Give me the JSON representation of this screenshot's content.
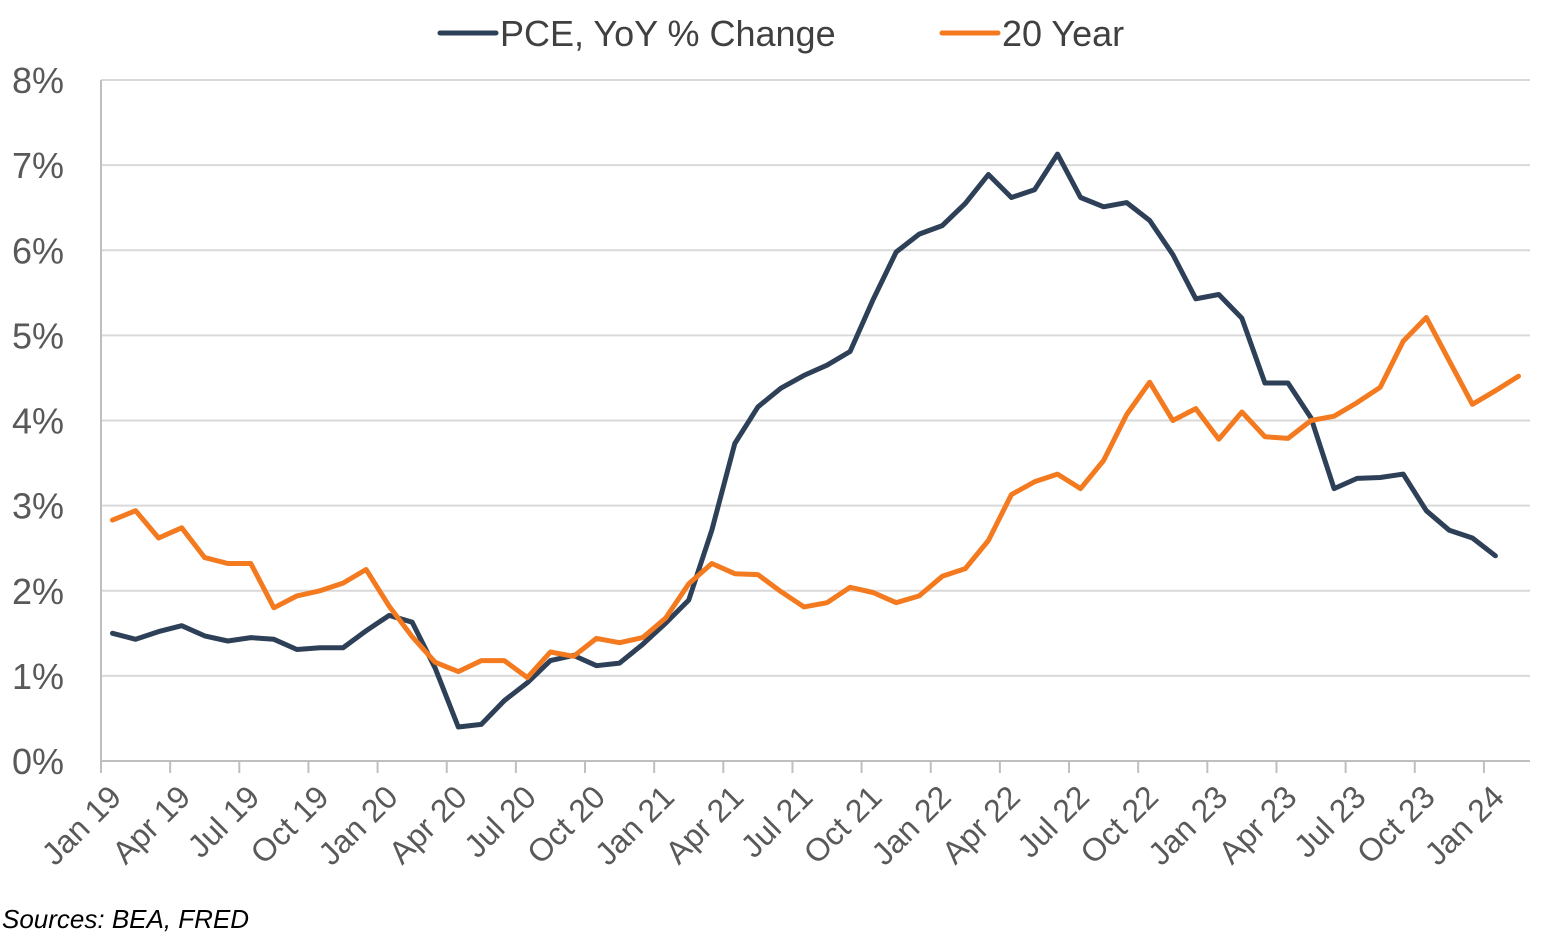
{
  "chart_data": {
    "type": "line",
    "title": "",
    "xlabel": "",
    "ylabel": "",
    "ylim": [
      0,
      8
    ],
    "yticks": [
      "0%",
      "1%",
      "2%",
      "3%",
      "4%",
      "5%",
      "6%",
      "7%",
      "8%"
    ],
    "xtick_labels": [
      "Jan 19",
      "Apr 19",
      "Jul 19",
      "Oct 19",
      "Jan 20",
      "Apr 20",
      "Jul 20",
      "Oct 20",
      "Jan 21",
      "Apr 21",
      "Jul 21",
      "Oct 21",
      "Jan 22",
      "Apr 22",
      "Jul 22",
      "Oct 22",
      "Jan 23",
      "Apr 23",
      "Jul 23",
      "Oct 23",
      "Jan 24"
    ],
    "months": 62,
    "legend_position": "top-center",
    "series": [
      {
        "name": "PCE, YoY % Change",
        "color": "#2E4057",
        "values": [
          1.5,
          1.43,
          1.52,
          1.59,
          1.47,
          1.41,
          1.45,
          1.43,
          1.31,
          1.33,
          1.33,
          1.53,
          1.71,
          1.63,
          1.09,
          0.4,
          0.43,
          0.71,
          0.92,
          1.18,
          1.24,
          1.12,
          1.15,
          1.37,
          1.62,
          1.89,
          2.71,
          3.73,
          4.16,
          4.38,
          4.53,
          4.65,
          4.81,
          5.42,
          5.98,
          6.19,
          6.29,
          6.55,
          6.89,
          6.62,
          6.71,
          7.13,
          6.62,
          6.51,
          6.56,
          6.35,
          5.95,
          5.43,
          5.48,
          5.2,
          4.44,
          4.44,
          4.03,
          3.2,
          3.32,
          3.33,
          3.37,
          2.94,
          2.71,
          2.62,
          2.41
        ]
      },
      {
        "name": "20 Year",
        "color": "#F47A20",
        "values": [
          2.83,
          2.94,
          2.62,
          2.74,
          2.39,
          2.32,
          2.32,
          1.8,
          1.94,
          2.0,
          2.09,
          2.25,
          1.82,
          1.46,
          1.16,
          1.05,
          1.18,
          1.18,
          0.98,
          1.28,
          1.23,
          1.44,
          1.39,
          1.45,
          1.68,
          2.08,
          2.32,
          2.2,
          2.19,
          1.99,
          1.81,
          1.86,
          2.04,
          1.98,
          1.86,
          1.94,
          2.17,
          2.26,
          2.59,
          3.13,
          3.28,
          3.37,
          3.2,
          3.53,
          4.07,
          4.45,
          4.0,
          4.14,
          3.78,
          4.1,
          3.81,
          3.79,
          4.0,
          4.05,
          4.21,
          4.39,
          4.93,
          5.21,
          4.7,
          4.19,
          4.35,
          4.52
        ]
      }
    ]
  },
  "source_note": "Sources: BEA, FRED"
}
